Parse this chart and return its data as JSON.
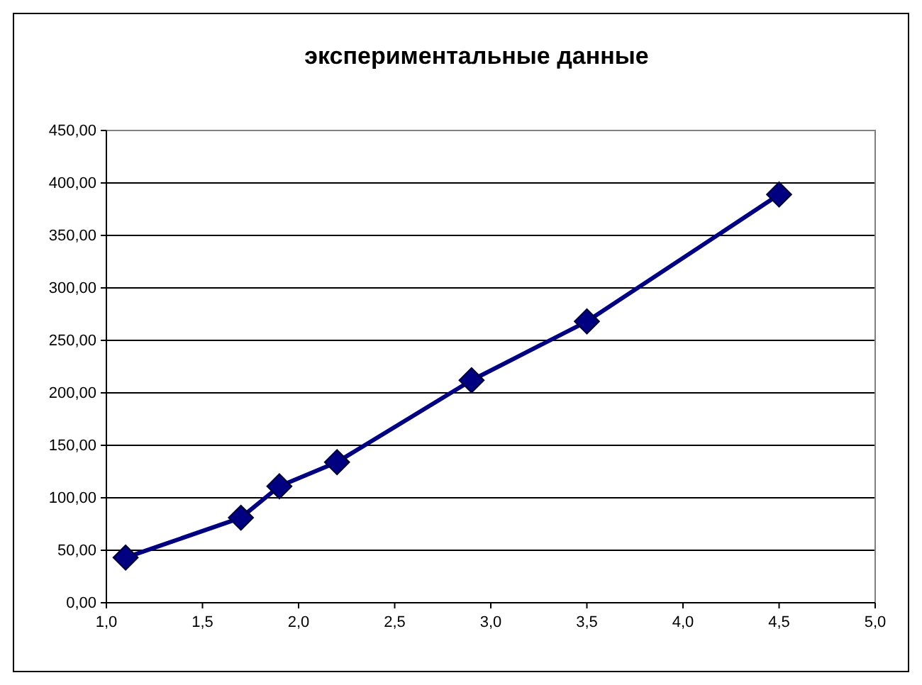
{
  "chart_data": {
    "type": "line",
    "title": "экспериментальные данные",
    "x": [
      1.1,
      1.7,
      1.9,
      2.2,
      2.9,
      3.5,
      4.5
    ],
    "series": [
      {
        "color": "#000080",
        "values": [
          43,
          81,
          111,
          134,
          212,
          268,
          389
        ]
      }
    ],
    "xlim": [
      1.0,
      5.0
    ],
    "xticks": [
      {
        "value": 1.0,
        "label": "1,0"
      },
      {
        "value": 1.5,
        "label": "1,5"
      },
      {
        "value": 2.0,
        "label": "2,0"
      },
      {
        "value": 2.5,
        "label": "2,5"
      },
      {
        "value": 3.0,
        "label": "3,0"
      },
      {
        "value": 3.5,
        "label": "3,5"
      },
      {
        "value": 4.0,
        "label": "4,0"
      },
      {
        "value": 4.5,
        "label": "4,5"
      },
      {
        "value": 5.0,
        "label": "5,0"
      }
    ],
    "ylim": [
      0,
      450
    ],
    "yticks": [
      {
        "value": 0,
        "label": "0,00"
      },
      {
        "value": 50,
        "label": "50,00"
      },
      {
        "value": 100,
        "label": "100,00"
      },
      {
        "value": 150,
        "label": "150,00"
      },
      {
        "value": 200,
        "label": "200,00"
      },
      {
        "value": 250,
        "label": "250,00"
      },
      {
        "value": 300,
        "label": "300,00"
      },
      {
        "value": 350,
        "label": "350,00"
      },
      {
        "value": 400,
        "label": "400,00"
      },
      {
        "value": 450,
        "label": "450,00"
      }
    ],
    "grid": "y",
    "marker": "diamond",
    "line_style": "solid"
  }
}
